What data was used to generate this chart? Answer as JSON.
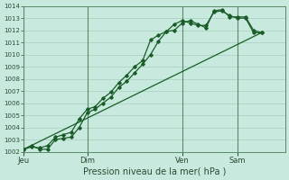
{
  "title": "Pression niveau de la mer( hPa )",
  "ylim": [
    1002,
    1014
  ],
  "yticks": [
    1002,
    1003,
    1004,
    1005,
    1006,
    1007,
    1008,
    1009,
    1010,
    1011,
    1012,
    1013,
    1014
  ],
  "xtick_labels": [
    "Jeu",
    "Dim",
    "Ven",
    "Sam"
  ],
  "xtick_positions": [
    0,
    8,
    20,
    27
  ],
  "xlim": [
    0,
    33
  ],
  "background_color": "#c8eade",
  "grid_color": "#a8ccbc",
  "line_color": "#1a5c28",
  "line1_x": [
    0,
    1,
    2,
    3,
    4,
    5,
    6,
    7,
    8,
    9,
    10,
    11,
    12,
    13,
    14,
    15,
    16,
    17,
    18,
    19,
    20,
    21,
    22,
    23,
    24,
    25,
    26,
    27,
    28,
    29,
    30
  ],
  "line1_y": [
    1002.2,
    1002.5,
    1002.2,
    1002.2,
    1003.0,
    1003.1,
    1003.2,
    1004.0,
    1005.2,
    1005.5,
    1006.0,
    1006.5,
    1007.3,
    1007.8,
    1008.5,
    1009.2,
    1010.0,
    1011.1,
    1011.9,
    1012.0,
    1012.6,
    1012.8,
    1012.5,
    1012.2,
    1013.6,
    1013.7,
    1013.1,
    1013.1,
    1013.1,
    1012.0,
    1011.8
  ],
  "line2_x": [
    0,
    1,
    2,
    3,
    4,
    5,
    6,
    7,
    8,
    9,
    10,
    11,
    12,
    13,
    14,
    15,
    16,
    17,
    18,
    19,
    20,
    21,
    22,
    23,
    24,
    25,
    26,
    27,
    28,
    29,
    30
  ],
  "line2_y": [
    1002.2,
    1002.4,
    1002.3,
    1002.5,
    1003.2,
    1003.4,
    1003.6,
    1004.7,
    1005.5,
    1005.7,
    1006.4,
    1006.9,
    1007.7,
    1008.3,
    1009.0,
    1009.5,
    1011.2,
    1011.6,
    1011.9,
    1012.5,
    1012.8,
    1012.6,
    1012.4,
    1012.4,
    1013.5,
    1013.6,
    1013.2,
    1013.0,
    1013.0,
    1011.8,
    1011.8
  ],
  "line3_x": [
    0,
    30
  ],
  "line3_y": [
    1002.2,
    1011.8
  ]
}
